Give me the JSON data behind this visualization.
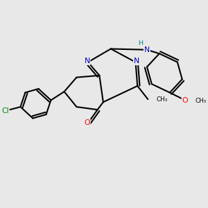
{
  "background_color": "#e8e8e8",
  "bond_color": "#000000",
  "bond_width": 1.5,
  "atom_colors": {
    "C": "#000000",
    "N": "#0000cc",
    "O": "#ff0000",
    "Cl": "#008800",
    "H": "#008888"
  },
  "figsize": [
    3.0,
    3.0
  ],
  "dpi": 100,
  "xlim": [
    0,
    10
  ],
  "ylim": [
    0,
    10
  ]
}
